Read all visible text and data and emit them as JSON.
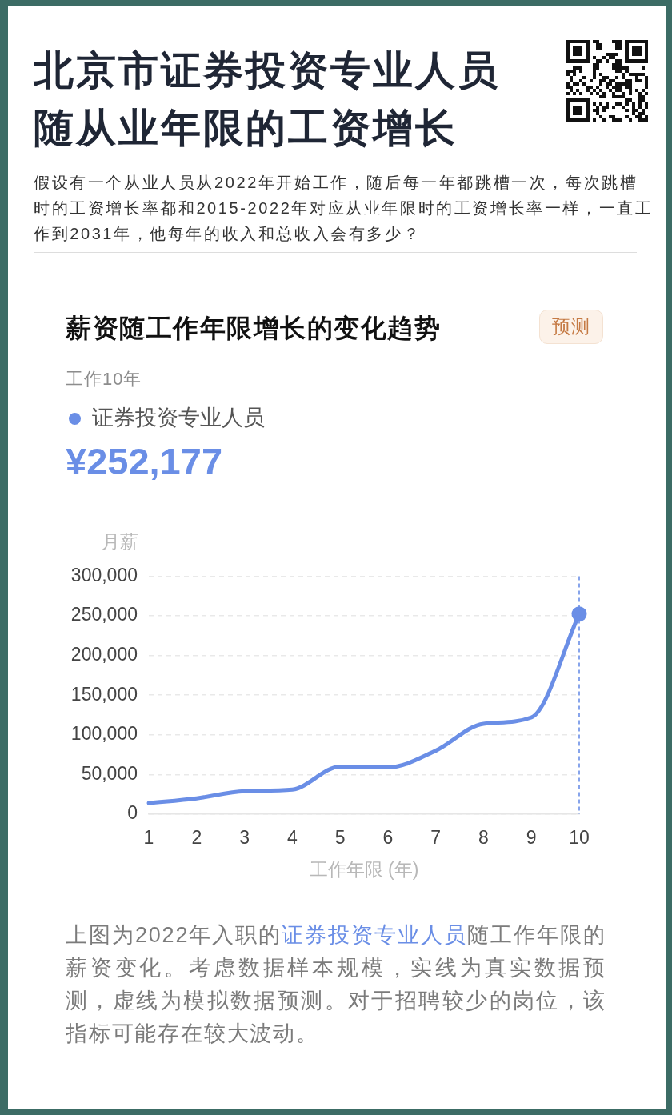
{
  "chart_data": {
    "type": "line",
    "title": "北京市证券投资专业人员随从业年限的工资增长",
    "subtitle": "假设有一个从业人员从2022年开始工作，随后每一年都跳槽一次，每次跳槽时的工资增长率都和2015-2022年对应从业年限时的工资增长率一样，一直工作到2031年，他每年的收入和总收入会有多少？",
    "xlabel": "工作年限 (年)",
    "ylabel": "月薪",
    "annotations": [
      "薪资随工作年限增长的变化趋势",
      "预测",
      "工作10年",
      "¥252,177",
      "上图为2022年入职的",
      "证券投资专业人员",
      "随工作年限的",
      "薪资变化。考虑数据样本规模，实线为真实数据预测，虚线为模拟数据预测。对于招聘较少的岗位，该指标可能存在较大波动。"
    ],
    "series": [
      {
        "name": "证券投资专业人员",
        "type": "line",
        "color": "#6a8ee6",
        "x": [
          1,
          2,
          3,
          4,
          5,
          6,
          7,
          8,
          9,
          10
        ],
        "values": [
          14000,
          20000,
          29000,
          31000,
          60000,
          59000,
          80000,
          114000,
          122000,
          252177
        ]
      },
      {
        "type": "scatter",
        "color": "#6a8ee6",
        "x": [
          10
        ],
        "values": [
          252177
        ],
        "marker": "circle"
      }
    ],
    "xlim": [
      1,
      10
    ],
    "xticks": [
      1,
      2,
      3,
      4,
      5,
      6,
      7,
      8,
      9,
      10
    ],
    "ylim": [
      0,
      300000
    ],
    "yticks": [
      0,
      {
        "value": 50000,
        "label": "50,000"
      },
      {
        "value": 100000,
        "label": "100,000"
      },
      {
        "value": 150000,
        "label": "150,000"
      },
      {
        "value": 200000,
        "label": "200,000"
      },
      {
        "value": 250000,
        "label": "250,000"
      },
      {
        "value": 300000,
        "label": "300,000"
      }
    ],
    "ref_lines": [
      {
        "axis": "x",
        "value": 10,
        "color": "#6a8ee6",
        "line_style": "dashed"
      }
    ],
    "grid": "y",
    "legend": "top left",
    "marker": "none",
    "line_style": "solid"
  }
}
